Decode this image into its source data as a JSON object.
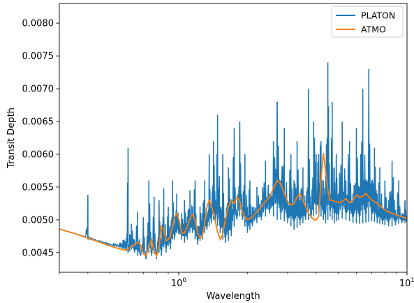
{
  "chart_data": {
    "type": "line",
    "title": "",
    "xlabel": "Wavelength",
    "ylabel": "Transit Depth",
    "xscale": "log",
    "xlim": [
      0.3,
      10
    ],
    "ylim": [
      0.0042,
      0.0083
    ],
    "grid": false,
    "legend_position": "top-right",
    "xticks": [
      {
        "value": 1,
        "label": "10",
        "exp": "0"
      },
      {
        "value": 10,
        "label": "10",
        "exp": "1"
      }
    ],
    "yticks": [
      {
        "value": 0.0045,
        "label": "0.0045"
      },
      {
        "value": 0.005,
        "label": "0.0050"
      },
      {
        "value": 0.0055,
        "label": "0.0055"
      },
      {
        "value": 0.006,
        "label": "0.0060"
      },
      {
        "value": 0.0065,
        "label": "0.0065"
      },
      {
        "value": 0.007,
        "label": "0.0070"
      },
      {
        "value": 0.0075,
        "label": "0.0075"
      },
      {
        "value": 0.008,
        "label": "0.0080"
      }
    ],
    "series": [
      {
        "name": "PLATON",
        "color": "#1f77b4",
        "x": [
          0.3,
          0.33,
          0.36,
          0.39,
          0.4,
          0.4,
          0.41,
          0.43,
          0.46,
          0.49,
          0.52,
          0.55,
          0.57,
          0.59,
          0.6,
          0.6,
          0.61,
          0.62,
          0.64,
          0.66,
          0.68,
          0.7,
          0.72,
          0.74,
          0.76,
          0.78,
          0.8,
          0.82,
          0.84,
          0.86,
          0.88,
          0.9,
          0.92,
          0.94,
          0.96,
          0.98,
          1.0,
          1.03,
          1.06,
          1.09,
          1.12,
          1.15,
          1.18,
          1.21,
          1.24,
          1.27,
          1.3,
          1.33,
          1.36,
          1.39,
          1.42,
          1.45,
          1.48,
          1.52,
          1.56,
          1.6,
          1.65,
          1.7,
          1.75,
          1.8,
          1.85,
          1.9,
          1.95,
          2.0,
          2.05,
          2.1,
          2.2,
          2.3,
          2.4,
          2.5,
          2.6,
          2.7,
          2.8,
          2.9,
          3.0,
          3.1,
          3.2,
          3.3,
          3.4,
          3.5,
          3.6,
          3.7,
          3.8,
          3.9,
          4.0,
          4.1,
          4.2,
          4.3,
          4.4,
          4.5,
          4.6,
          4.7,
          4.8,
          4.9,
          5.0,
          5.2,
          5.4,
          5.6,
          5.8,
          6.0,
          6.2,
          6.4,
          6.6,
          6.8,
          7.0,
          7.2,
          7.4,
          7.6,
          7.8,
          8.0,
          8.3,
          8.6,
          8.9,
          9.2,
          9.5,
          9.8,
          10.0
        ],
        "y": [
          0.00486,
          0.00482,
          0.00478,
          0.00474,
          0.00538,
          0.00474,
          0.00473,
          0.00471,
          0.00468,
          0.00465,
          0.00464,
          0.00465,
          0.00469,
          0.00472,
          0.0061,
          0.00462,
          0.00478,
          0.00494,
          0.0047,
          0.00512,
          0.0045,
          0.00504,
          0.0044,
          0.0056,
          0.00455,
          0.00535,
          0.00452,
          0.0053,
          0.0047,
          0.00548,
          0.00476,
          0.0052,
          0.0049,
          0.0056,
          0.00488,
          0.0054,
          0.005,
          0.0051,
          0.0053,
          0.00505,
          0.00545,
          0.0052,
          0.0056,
          0.0049,
          0.0052,
          0.0051,
          0.0056,
          0.005,
          0.006,
          0.0052,
          0.0062,
          0.0053,
          0.0066,
          0.0052,
          0.006,
          0.005,
          0.0058,
          0.0053,
          0.0064,
          0.0051,
          0.0065,
          0.0052,
          0.006,
          0.0052,
          0.0056,
          0.0052,
          0.0055,
          0.0053,
          0.0059,
          0.0054,
          0.0062,
          0.0068,
          0.0056,
          0.0064,
          0.0053,
          0.006,
          0.0056,
          0.0062,
          0.0053,
          0.0058,
          0.0052,
          0.007,
          0.0051,
          0.0065,
          0.006,
          0.006,
          0.0062,
          0.0056,
          0.0058,
          0.0074,
          0.0054,
          0.0068,
          0.0058,
          0.006,
          0.0054,
          0.0065,
          0.0056,
          0.0062,
          0.0054,
          0.0064,
          0.0055,
          0.007,
          0.0056,
          0.0073,
          0.0056,
          0.0061,
          0.0054,
          0.0058,
          0.0052,
          0.0056,
          0.0053,
          0.0059,
          0.00515,
          0.0056,
          0.0051,
          0.0053,
          0.00505
        ],
        "y_low": [
          0.00486,
          0.00482,
          0.00478,
          0.00474,
          0.00472,
          0.0047,
          0.0047,
          0.00468,
          0.00465,
          0.00462,
          0.0046,
          0.00458,
          0.00455,
          0.00452,
          0.0045,
          0.0045,
          0.00452,
          0.00455,
          0.0045,
          0.00445,
          0.00445,
          0.0045,
          0.0044,
          0.0045,
          0.00445,
          0.00448,
          0.0044,
          0.0045,
          0.00445,
          0.00458,
          0.0045,
          0.0046,
          0.00455,
          0.0047,
          0.0047,
          0.0048,
          0.00478,
          0.0047,
          0.00465,
          0.0047,
          0.0048,
          0.0048,
          0.0047,
          0.00462,
          0.00468,
          0.0047,
          0.0048,
          0.00485,
          0.0049,
          0.00495,
          0.005,
          0.00495,
          0.0049,
          0.0048,
          0.0047,
          0.00465,
          0.00468,
          0.00475,
          0.0049,
          0.005,
          0.00505,
          0.005,
          0.0049,
          0.0048,
          0.00485,
          0.0049,
          0.00495,
          0.005,
          0.00505,
          0.0051,
          0.00505,
          0.005,
          0.005,
          0.00498,
          0.00495,
          0.0049,
          0.00485,
          0.00488,
          0.00492,
          0.00495,
          0.005,
          0.005,
          0.00502,
          0.00505,
          0.00508,
          0.0051,
          0.00505,
          0.005,
          0.00495,
          0.005,
          0.00505,
          0.005,
          0.00495,
          0.00498,
          0.005,
          0.00502,
          0.005,
          0.00498,
          0.00496,
          0.00495,
          0.00494,
          0.00495,
          0.00496,
          0.00497,
          0.00498,
          0.00497,
          0.00495,
          0.00494,
          0.00493,
          0.00492,
          0.0049,
          0.0049,
          0.00492,
          0.00494,
          0.00495,
          0.00495,
          0.00496
        ]
      },
      {
        "name": "ATMO",
        "color": "#ff7f0e",
        "x": [
          0.3,
          0.35,
          0.4,
          0.45,
          0.5,
          0.55,
          0.58,
          0.6,
          0.62,
          0.64,
          0.66,
          0.68,
          0.7,
          0.72,
          0.74,
          0.76,
          0.78,
          0.8,
          0.82,
          0.84,
          0.86,
          0.88,
          0.9,
          0.92,
          0.94,
          0.96,
          0.98,
          1.0,
          1.03,
          1.06,
          1.09,
          1.12,
          1.15,
          1.18,
          1.21,
          1.24,
          1.27,
          1.3,
          1.33,
          1.36,
          1.4,
          1.44,
          1.48,
          1.52,
          1.56,
          1.6,
          1.65,
          1.7,
          1.75,
          1.8,
          1.85,
          1.9,
          1.95,
          2.0,
          2.05,
          2.1,
          2.2,
          2.3,
          2.4,
          2.5,
          2.6,
          2.7,
          2.8,
          2.9,
          3.0,
          3.1,
          3.2,
          3.3,
          3.4,
          3.5,
          3.6,
          3.7,
          3.8,
          3.9,
          4.0,
          4.1,
          4.2,
          4.3,
          4.4,
          4.5,
          4.6,
          4.7,
          4.8,
          4.9,
          5.0,
          5.2,
          5.4,
          5.6,
          5.8,
          6.0,
          6.2,
          6.4,
          6.6,
          6.8,
          7.0,
          7.2,
          7.4,
          7.6,
          7.8,
          8.0,
          8.3,
          8.6,
          8.9,
          9.2,
          9.5,
          9.8,
          10.0
        ],
        "y": [
          0.00486,
          0.00479,
          0.00472,
          0.00466,
          0.0046,
          0.00456,
          0.00454,
          0.00455,
          0.0046,
          0.00462,
          0.00466,
          0.00462,
          0.00448,
          0.00445,
          0.00458,
          0.0047,
          0.00452,
          0.00445,
          0.00458,
          0.0049,
          0.00485,
          0.00468,
          0.0047,
          0.00475,
          0.0049,
          0.00505,
          0.0051,
          0.00502,
          0.0048,
          0.0048,
          0.0049,
          0.00502,
          0.00508,
          0.005,
          0.0048,
          0.00472,
          0.00475,
          0.00495,
          0.0052,
          0.0053,
          0.00518,
          0.005,
          0.00482,
          0.0047,
          0.00478,
          0.005,
          0.0052,
          0.0053,
          0.00525,
          0.00535,
          0.00528,
          0.00512,
          0.00505,
          0.005,
          0.00502,
          0.00505,
          0.00512,
          0.0052,
          0.00528,
          0.00535,
          0.00548,
          0.0056,
          0.00555,
          0.0054,
          0.00528,
          0.00522,
          0.00525,
          0.00535,
          0.0054,
          0.0053,
          0.0052,
          0.0051,
          0.00505,
          0.005,
          0.005,
          0.00505,
          0.0056,
          0.00602,
          0.00575,
          0.00545,
          0.0053,
          0.0053,
          0.00528,
          0.00528,
          0.00526,
          0.00528,
          0.00532,
          0.00526,
          0.0053,
          0.00538,
          0.00534,
          0.00536,
          0.0054,
          0.00535,
          0.0053,
          0.00528,
          0.00525,
          0.00522,
          0.00518,
          0.00515,
          0.00512,
          0.0051,
          0.00508,
          0.00506,
          0.00505,
          0.00503,
          0.00502
        ]
      }
    ]
  }
}
